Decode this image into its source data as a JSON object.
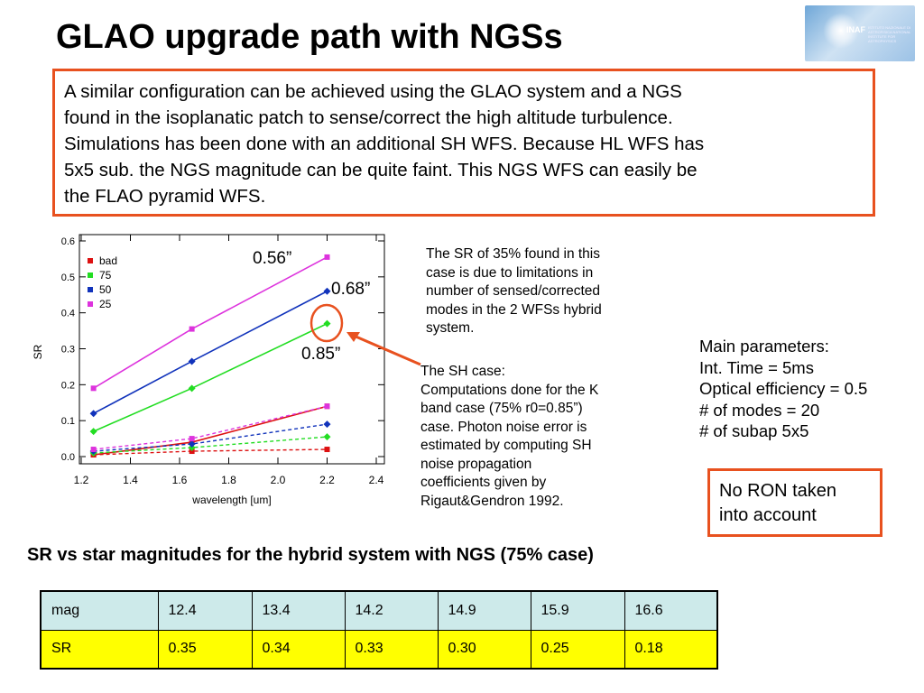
{
  "slide_title": "GLAO upgrade path with NGSs",
  "logo": {
    "text": "INAF",
    "subtext": "ISTITUTO NAZIONALE DI ASTROFISICA NATIONAL INSTITUTE FOR ASTROPHYSICS"
  },
  "intro_lines": [
    "A similar configuration can be achieved using the GLAO system and a NGS",
    "found in the isoplanatic patch to sense/correct the high altitude turbulence.",
    "Simulations has been done with an additional SH WFS. Because HL WFS has",
    "5x5 sub. the NGS magnitude can be quite faint. This NGS WFS can easily be",
    "the FLAO pyramid WFS."
  ],
  "chart_data": {
    "type": "line",
    "xlabel": "wavelength [um]",
    "ylabel": "SR",
    "xlim": [
      1.2,
      2.4
    ],
    "ylim": [
      0.0,
      0.6
    ],
    "xticks": [
      "1.2",
      "1.4",
      "1.6",
      "1.8",
      "2.0",
      "2.2",
      "2.4"
    ],
    "yticks": [
      "0.0",
      "0.1",
      "0.2",
      "0.3",
      "0.4",
      "0.5",
      "0.6"
    ],
    "x": [
      1.25,
      1.65,
      2.2
    ],
    "legend_position": "top-left",
    "series": [
      {
        "name": "bad",
        "color": "#dd1111",
        "marker": "square",
        "solid": [
          0.005,
          0.04,
          0.14
        ],
        "dashed": [
          0.005,
          0.015,
          0.02
        ]
      },
      {
        "name": "75",
        "color": "#22dd22",
        "marker": "diamond",
        "solid": [
          0.07,
          0.19,
          0.37
        ],
        "dashed": [
          0.01,
          0.025,
          0.055
        ]
      },
      {
        "name": "50",
        "color": "#1133bb",
        "marker": "diamond",
        "solid": [
          0.12,
          0.265,
          0.46
        ],
        "dashed": [
          0.015,
          0.035,
          0.09
        ]
      },
      {
        "name": "25",
        "color": "#dd33dd",
        "marker": "square",
        "solid": [
          0.19,
          0.355,
          0.555
        ],
        "dashed": [
          0.02,
          0.05,
          0.14
        ]
      }
    ],
    "annotations": [
      "0.56”",
      "0.68”",
      "0.85”"
    ]
  },
  "sr_note_lines": [
    "The SR of 35% found in this",
    "case is due to limitations in",
    "number of sensed/corrected",
    "modes in the 2 WFSs hybrid",
    "system."
  ],
  "sh_note_lines": [
    "The SH case:",
    "Computations done for the K",
    "band case (75% r0=0.85”)",
    "case. Photon noise error is",
    "estimated by computing SH",
    "noise propagation",
    "coefficients given by",
    "Rigaut&Gendron 1992."
  ],
  "params_lines": [
    "Main parameters:",
    "Int. Time = 5ms",
    "Optical efficiency = 0.5",
    "# of  modes = 20",
    "# of subap 5x5"
  ],
  "ron_lines": [
    "No RON taken",
    "into account"
  ],
  "table_caption": "SR vs star magnitudes for the hybrid system with NGS (75% case)",
  "table": {
    "rows": [
      [
        "mag",
        "12.4",
        "13.4",
        "14.2",
        "14.9",
        "15.9",
        "16.6"
      ],
      [
        "SR",
        "0.35",
        "0.34",
        "0.33",
        "0.30",
        "0.25",
        "0.18"
      ]
    ]
  },
  "colors": {
    "accent_border": "#e8511f",
    "table_header_bg": "#cdeaea",
    "table_row_bg": "#ffff00"
  }
}
